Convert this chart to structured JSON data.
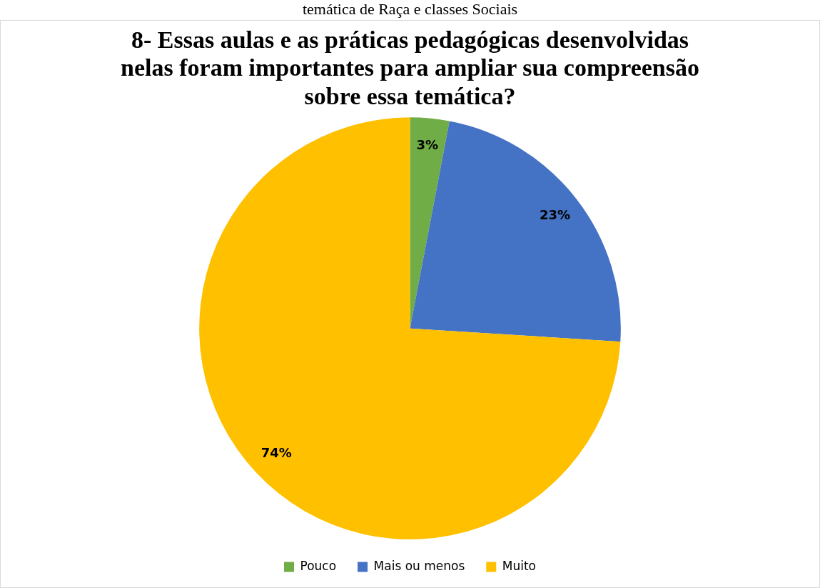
{
  "chart_data": {
    "type": "pie",
    "title": "8- Essas aulas e as práticas pedagógicas desenvolvidas nelas foram importantes para ampliar sua compreensão sobre essa temática?",
    "annotations": [
      "temática de Raça e classes Sociais"
    ],
    "categories": [
      "Pouco",
      "Mais ou menos",
      "Muito"
    ],
    "values": [
      3,
      23,
      74
    ],
    "colors": [
      "#70ad47",
      "#4472c4",
      "#ffc000"
    ],
    "value_labels": [
      "3%",
      "23%",
      "74%"
    ],
    "legend": "bottom"
  }
}
